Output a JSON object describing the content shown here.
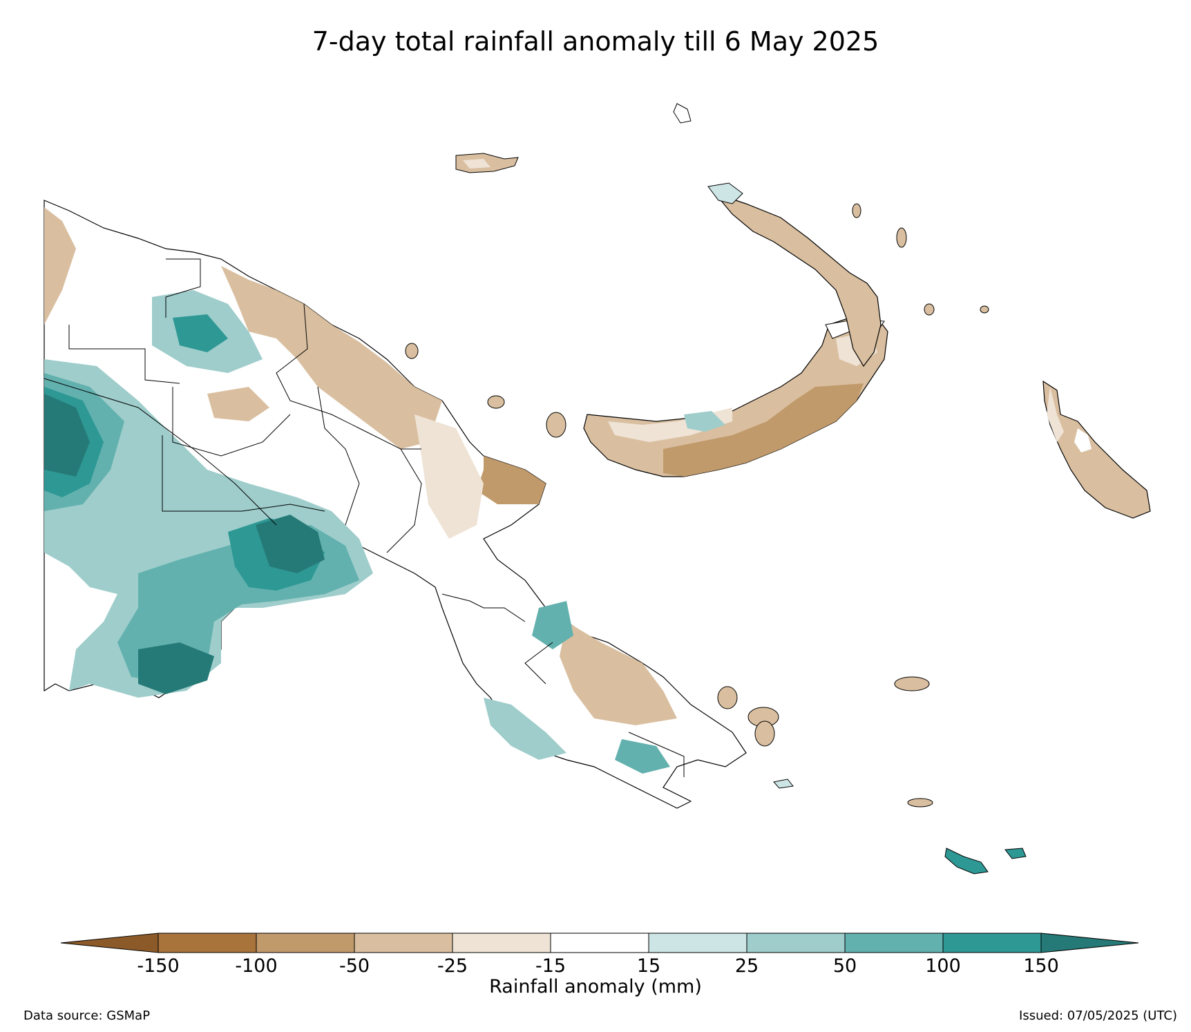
{
  "title": "7-day total rainfall anomaly till 6 May 2025",
  "colorbar": {
    "label": "Rainfall anomaly (mm)",
    "ticks": [
      "-150",
      "-100",
      "-50",
      "-25",
      "-15",
      "15",
      "25",
      "50",
      "100",
      "150"
    ],
    "colors": [
      "#8c5a28",
      "#a8743c",
      "#c19a6b",
      "#d9bfa0",
      "#efe3d6",
      "#ffffff",
      "#cde5e4",
      "#9ecdcb",
      "#62b1ae",
      "#2e9894",
      "#257a77"
    ]
  },
  "footer": {
    "source": "Data source: GSMaP",
    "issued": "Issued: 07/05/2025 (UTC)"
  },
  "legend_colors": {
    "dry_strong": "#c19a6b",
    "dry": "#d9bfa0",
    "dry_light": "#efe3d6",
    "neutral": "#ffffff",
    "wet_light": "#cde5e4",
    "wet": "#9ecdcb",
    "wet_mid": "#62b1ae",
    "wet_strong": "#2e9894",
    "wet_extreme": "#257a77"
  }
}
